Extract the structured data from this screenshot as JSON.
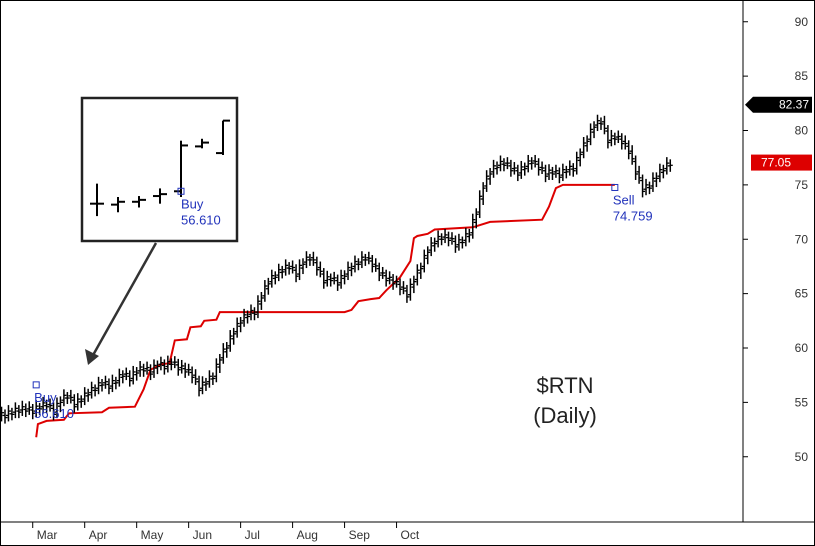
{
  "chart_data": {
    "type": "ohlc",
    "title": "$RTN",
    "subtitle": "(Daily)",
    "ylim": [
      44,
      92
    ],
    "y_ticks": [
      50,
      55,
      60,
      65,
      70,
      75,
      80,
      85,
      90
    ],
    "x_ticks": [
      "Mar",
      "Apr",
      "May",
      "Jun",
      "Jul",
      "Aug",
      "Sep",
      "Oct"
    ],
    "last_price": "82.37",
    "stop_value": "77.05",
    "colors": {
      "price": "#000000",
      "stop": "#dd0000",
      "annotation": "#2233bb",
      "last_tag_bg": "#000000",
      "stop_tag_bg": "#dd0000"
    },
    "close_series": [
      [
        0,
        53.8
      ],
      [
        4,
        54.1
      ],
      [
        8,
        54.3
      ],
      [
        12,
        54.4
      ],
      [
        16,
        54.2
      ],
      [
        20,
        54.6
      ],
      [
        24,
        54.8
      ],
      [
        28,
        54.1
      ],
      [
        32,
        55.2
      ],
      [
        36,
        55.6
      ],
      [
        40,
        54.8
      ],
      [
        44,
        55.3
      ],
      [
        48,
        55.9
      ],
      [
        52,
        56.3
      ],
      [
        56,
        56.8
      ],
      [
        60,
        56.5
      ],
      [
        64,
        57.0
      ],
      [
        68,
        57.6
      ],
      [
        72,
        57.2
      ],
      [
        76,
        57.9
      ],
      [
        80,
        58.1
      ],
      [
        84,
        57.8
      ],
      [
        88,
        58.5
      ],
      [
        92,
        58.3
      ],
      [
        96,
        58.7
      ],
      [
        100,
        58.2
      ],
      [
        104,
        58.0
      ],
      [
        108,
        57.5
      ],
      [
        112,
        56.3
      ],
      [
        116,
        56.9
      ],
      [
        120,
        57.4
      ],
      [
        124,
        59.1
      ],
      [
        128,
        60.2
      ],
      [
        132,
        61.5
      ],
      [
        136,
        62.5
      ],
      [
        140,
        63.1
      ],
      [
        144,
        63.3
      ],
      [
        148,
        64.8
      ],
      [
        152,
        66.1
      ],
      [
        156,
        66.7
      ],
      [
        160,
        67.2
      ],
      [
        164,
        67.5
      ],
      [
        168,
        66.8
      ],
      [
        172,
        67.9
      ],
      [
        176,
        68.3
      ],
      [
        180,
        67.4
      ],
      [
        184,
        66.2
      ],
      [
        188,
        66.4
      ],
      [
        192,
        66.0
      ],
      [
        196,
        66.8
      ],
      [
        200,
        67.5
      ],
      [
        204,
        67.9
      ],
      [
        208,
        68.3
      ],
      [
        212,
        67.7
      ],
      [
        216,
        66.9
      ],
      [
        220,
        66.4
      ],
      [
        224,
        66.1
      ],
      [
        228,
        65.6
      ],
      [
        232,
        64.9
      ],
      [
        236,
        66.3
      ],
      [
        240,
        67.5
      ],
      [
        244,
        69.0
      ],
      [
        248,
        69.8
      ],
      [
        252,
        70.2
      ],
      [
        256,
        70.1
      ],
      [
        260,
        69.5
      ],
      [
        264,
        69.9
      ],
      [
        268,
        70.6
      ],
      [
        272,
        72.5
      ],
      [
        276,
        74.9
      ],
      [
        280,
        76.2
      ],
      [
        284,
        76.8
      ],
      [
        288,
        77.0
      ],
      [
        292,
        76.5
      ],
      [
        296,
        76.1
      ],
      [
        300,
        76.7
      ],
      [
        304,
        77.2
      ],
      [
        308,
        76.6
      ],
      [
        312,
        76.0
      ],
      [
        316,
        76.2
      ],
      [
        320,
        75.9
      ],
      [
        324,
        76.4
      ],
      [
        328,
        76.5
      ],
      [
        332,
        78.0
      ],
      [
        336,
        79.2
      ],
      [
        340,
        80.5
      ],
      [
        344,
        80.8
      ],
      [
        348,
        79.1
      ],
      [
        352,
        79.4
      ],
      [
        356,
        79.0
      ],
      [
        360,
        78.1
      ],
      [
        364,
        76.2
      ],
      [
        368,
        74.6
      ],
      [
        372,
        74.9
      ],
      [
        376,
        75.8
      ],
      [
        380,
        76.5
      ],
      [
        384,
        77.0
      ]
    ],
    "stop_series": [
      [
        18,
        51.8
      ],
      [
        19,
        53.0
      ],
      [
        24,
        53.3
      ],
      [
        34,
        53.4
      ],
      [
        37,
        54.0
      ],
      [
        56,
        54.1
      ],
      [
        60,
        54.5
      ],
      [
        75,
        54.6
      ],
      [
        80,
        56.2
      ],
      [
        84,
        58.0
      ],
      [
        90,
        58.5
      ],
      [
        95,
        58.6
      ],
      [
        98,
        60.7
      ],
      [
        105,
        60.8
      ],
      [
        107,
        61.9
      ],
      [
        113,
        62.0
      ],
      [
        115,
        62.5
      ],
      [
        122,
        62.6
      ],
      [
        124,
        63.3
      ],
      [
        196,
        63.3
      ],
      [
        200,
        63.5
      ],
      [
        204,
        64.3
      ],
      [
        211,
        64.5
      ],
      [
        216,
        64.6
      ],
      [
        220,
        65.3
      ],
      [
        228,
        66.5
      ],
      [
        234,
        68.0
      ],
      [
        236,
        70.1
      ],
      [
        238,
        70.3
      ],
      [
        244,
        70.5
      ],
      [
        248,
        70.9
      ],
      [
        270,
        71.1
      ],
      [
        280,
        71.6
      ],
      [
        310,
        71.8
      ],
      [
        314,
        73.0
      ],
      [
        318,
        74.7
      ],
      [
        322,
        75.0
      ],
      [
        352,
        75.0
      ]
    ],
    "annotations": [
      {
        "label": "Buy",
        "value": "56.610",
        "x": 18,
        "y": 56.61
      },
      {
        "label": "Sell",
        "value": "74.759",
        "x": 352,
        "y": 74.76
      }
    ],
    "inset": {
      "bars": [
        {
          "h": 74.6,
          "l": 71.2,
          "o": 72.5,
          "c": 72.5
        },
        {
          "h": 73.2,
          "l": 71.6,
          "o": 72.4,
          "c": 72.7
        },
        {
          "h": 73.3,
          "l": 72.1,
          "o": 72.7,
          "c": 72.9
        },
        {
          "h": 74.1,
          "l": 72.5,
          "o": 73.3,
          "c": 73.5
        },
        {
          "h": 79.1,
          "l": 73.2,
          "o": 73.8,
          "c": 78.6
        },
        {
          "h": 79.3,
          "l": 78.3,
          "o": 78.5,
          "c": 78.9
        },
        {
          "h": 81.2,
          "l": 77.6,
          "o": 77.8,
          "c": 81.2
        }
      ],
      "label": "Buy",
      "value": "56.610"
    }
  }
}
